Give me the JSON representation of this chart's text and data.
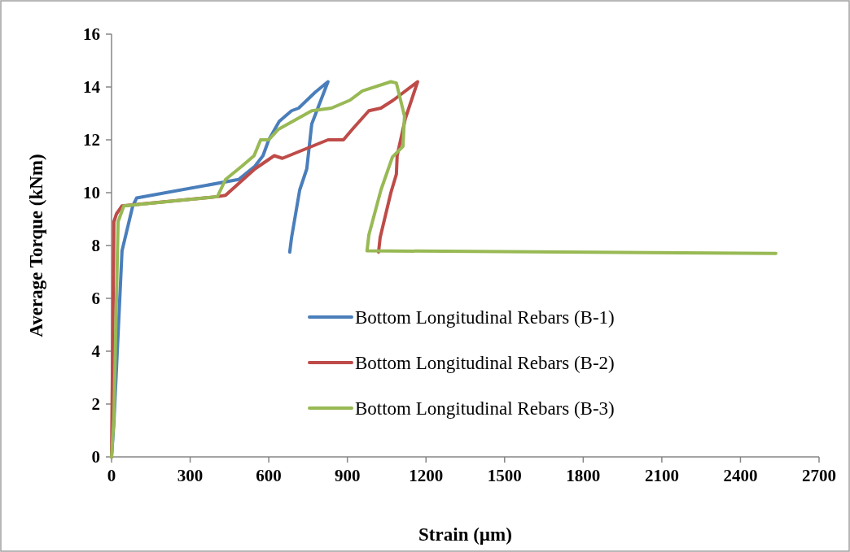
{
  "chart_data": {
    "type": "line",
    "xlabel": "Strain  (µm)",
    "ylabel": "Average Torque  (kNm)",
    "xlim": [
      0,
      2700
    ],
    "xticks": [
      0,
      300,
      600,
      900,
      1200,
      1500,
      1800,
      2100,
      2400,
      2700
    ],
    "ylim": [
      0,
      16
    ],
    "yticks": [
      0,
      2,
      4,
      6,
      8,
      10,
      12,
      14,
      16
    ],
    "legend": "right",
    "grid": false,
    "line_style": "solid",
    "series": [
      {
        "name": "Bottom Longitudinal Rebars (B-1)",
        "color": "#4a7ebb",
        "x": [
          0,
          9,
          40,
          81,
          96,
          485,
          547,
          578,
          600,
          640,
          687,
          714,
          777,
          826,
          795,
          764,
          745,
          718,
          687,
          680
        ],
        "values": [
          0,
          1.3,
          7.8,
          9.5,
          9.8,
          10.5,
          11.0,
          11.4,
          12.0,
          12.7,
          13.1,
          13.2,
          13.8,
          14.2,
          13.4,
          12.6,
          10.9,
          10.1,
          8.3,
          7.75
        ]
      },
      {
        "name": "Bottom Longitudinal Rebars (B-2)",
        "color": "#be4b48",
        "x": [
          0,
          9,
          19,
          40,
          404,
          435,
          547,
          621,
          652,
          826,
          885,
          919,
          982,
          1028,
          1075,
          1168,
          1121,
          1090,
          1087,
          1066,
          1025,
          1019
        ],
        "values": [
          0,
          8.9,
          9.2,
          9.5,
          9.85,
          9.9,
          10.9,
          11.4,
          11.3,
          12.0,
          12.0,
          12.4,
          13.1,
          13.2,
          13.5,
          14.2,
          12.8,
          11.4,
          10.7,
          10.0,
          8.3,
          7.75
        ]
      },
      {
        "name": "Bottom Longitudinal Rebars (B-3)",
        "color": "#98b954",
        "x": [
          0,
          9,
          25,
          47,
          404,
          435,
          497,
          544,
          569,
          600,
          637,
          764,
          839,
          910,
          957,
          1066,
          1087,
          1118,
          1112,
          1072,
          1028,
          982,
          975,
          2535
        ],
        "values": [
          0,
          1.5,
          8.9,
          9.5,
          9.85,
          10.5,
          11.0,
          11.4,
          12.0,
          12.0,
          12.4,
          13.1,
          13.2,
          13.5,
          13.85,
          14.2,
          14.15,
          12.9,
          11.75,
          11.35,
          10.1,
          8.4,
          7.8,
          7.7
        ]
      }
    ]
  }
}
